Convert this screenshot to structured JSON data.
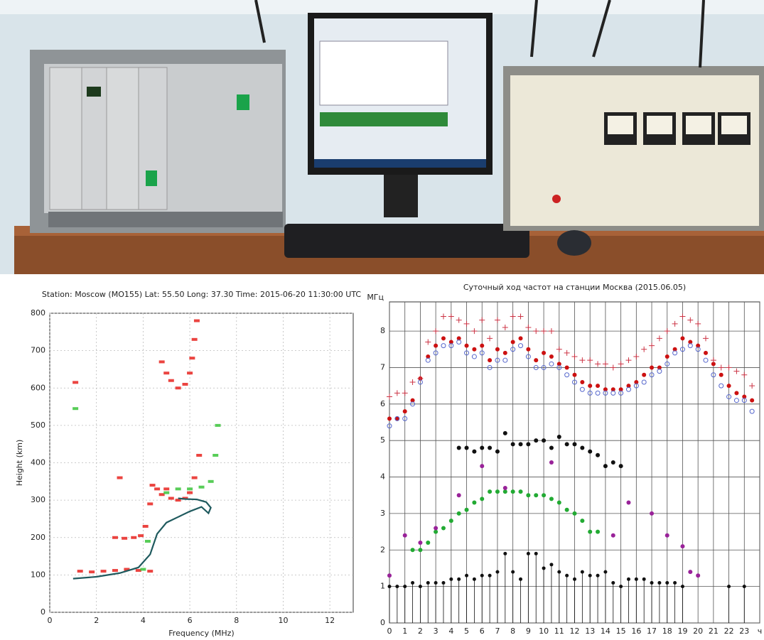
{
  "chart_data": [
    {
      "type": "scatter",
      "title": "Station: Moscow (MO155)  Lat: 55.50 Long: 37.30 Time: 2015-06-20 11:30:00 UTC",
      "x_label": "Frequency (MHz)",
      "y_label": "Height (km)",
      "xlim": [
        0,
        13
      ],
      "xticks": [
        0,
        2,
        4,
        6,
        8,
        10,
        12
      ],
      "ylim": [
        0,
        800
      ],
      "yticks": [
        0,
        100,
        200,
        300,
        400,
        500,
        600,
        700,
        800
      ],
      "grid": true,
      "series": [
        {
          "color": "#e8231f",
          "marker": "dot",
          "x": [
            1.3,
            1.8,
            2.3,
            2.8,
            3.3,
            3.8,
            4.3,
            2.8,
            3.2,
            3.6,
            3.9,
            4.1,
            4.3,
            4.4,
            4.6,
            4.8,
            5.0,
            5.2,
            5.5,
            5.8,
            6.0,
            6.2,
            6.4,
            4.8,
            5.0,
            5.2,
            5.5,
            5.8,
            6.0,
            6.1,
            6.2,
            6.3,
            1.1,
            3.0
          ],
          "values": [
            110,
            108,
            110,
            112,
            115,
            112,
            110,
            200,
            198,
            200,
            205,
            230,
            290,
            340,
            330,
            315,
            330,
            305,
            300,
            305,
            320,
            360,
            420,
            670,
            640,
            620,
            600,
            610,
            640,
            680,
            730,
            780,
            615,
            360
          ]
        },
        {
          "color": "#3bc43b",
          "marker": "dot",
          "x": [
            1.1,
            4.0,
            4.2,
            5.0,
            5.5,
            6.0,
            6.5,
            6.9,
            7.1,
            7.2
          ],
          "values": [
            545,
            115,
            190,
            320,
            330,
            330,
            335,
            350,
            420,
            500
          ]
        },
        {
          "color": "#1f5a5e",
          "marker": "line",
          "x": [
            1.0,
            2.0,
            3.0,
            3.8,
            4.3,
            4.6,
            5.0,
            5.5,
            6.0,
            6.5,
            6.8,
            6.9,
            6.7,
            6.3,
            5.8,
            5.5
          ],
          "values": [
            90,
            95,
            105,
            120,
            155,
            210,
            240,
            255,
            270,
            282,
            265,
            280,
            295,
            302,
            303,
            305
          ]
        }
      ]
    },
    {
      "type": "scatter",
      "title": "Суточный ход частот на станции Москва (2015.06.05)",
      "y_label": "МГц",
      "xlim": [
        0,
        24
      ],
      "xticks": [
        0,
        1,
        2,
        3,
        4,
        5,
        6,
        7,
        8,
        9,
        10,
        11,
        12,
        13,
        14,
        15,
        16,
        17,
        18,
        19,
        20,
        21,
        22,
        23,
        {
          "value": 24,
          "label": "ч"
        }
      ],
      "ylim": [
        0,
        8.8
      ],
      "yticks": [
        0,
        1,
        2,
        3,
        4,
        5,
        6,
        7,
        8
      ],
      "grid": true,
      "series": [
        {
          "color": "#cc1111",
          "marker": "circle-filled",
          "x": [
            0,
            0.5,
            1,
            1.5,
            2,
            2.5,
            3,
            3.5,
            4,
            4.5,
            5,
            5.5,
            6,
            6.5,
            7,
            7.5,
            8,
            8.5,
            9,
            9.5,
            10,
            10.5,
            11,
            11.5,
            12,
            12.5,
            13,
            13.5,
            14,
            14.5,
            15,
            15.5,
            16,
            16.5,
            17,
            17.5,
            18,
            18.5,
            19,
            19.5,
            20,
            20.5,
            21,
            21.5,
            22,
            22.5,
            23,
            23.5
          ],
          "values": [
            5.6,
            5.6,
            5.8,
            6.1,
            6.7,
            7.3,
            7.6,
            7.8,
            7.7,
            7.8,
            7.6,
            7.5,
            7.6,
            7.2,
            7.5,
            7.4,
            7.7,
            7.8,
            7.5,
            7.2,
            7.4,
            7.3,
            7.1,
            7.0,
            6.8,
            6.6,
            6.5,
            6.5,
            6.4,
            6.4,
            6.4,
            6.5,
            6.6,
            6.8,
            7.0,
            7.0,
            7.3,
            7.5,
            7.8,
            7.7,
            7.6,
            7.4,
            7.1,
            6.8,
            6.5,
            6.3,
            6.2,
            6.1
          ]
        },
        {
          "color": "#cc3344",
          "marker": "plus",
          "x": [
            0,
            0.5,
            1,
            1.5,
            2,
            2.5,
            3,
            3.5,
            4,
            4.5,
            5,
            5.5,
            6,
            6.5,
            7,
            7.5,
            8,
            8.5,
            9,
            9.5,
            10,
            10.5,
            11,
            11.5,
            12,
            12.5,
            13,
            13.5,
            14,
            14.5,
            15,
            15.5,
            16,
            16.5,
            17,
            17.5,
            18,
            18.5,
            19,
            19.5,
            20,
            20.5,
            21,
            21.5,
            22,
            22.5,
            23,
            23.5
          ],
          "values": [
            6.2,
            6.3,
            6.3,
            6.6,
            6.7,
            7.7,
            8.0,
            8.4,
            8.4,
            8.3,
            8.2,
            8.0,
            8.3,
            7.8,
            8.3,
            8.1,
            8.4,
            8.4,
            8.1,
            8.0,
            8.0,
            8.0,
            7.5,
            7.4,
            7.3,
            7.2,
            7.2,
            7.1,
            7.1,
            7.0,
            7.1,
            7.2,
            7.3,
            7.5,
            7.6,
            7.8,
            8.0,
            8.2,
            8.4,
            8.3,
            8.2,
            7.8,
            7.2,
            7.0,
            7.0,
            6.9,
            6.8,
            6.5
          ]
        },
        {
          "color": "#5566cc",
          "marker": "circle-open",
          "x": [
            0,
            0.5,
            1,
            1.5,
            2,
            2.5,
            3,
            3.5,
            4,
            4.5,
            5,
            5.5,
            6,
            6.5,
            7,
            7.5,
            8,
            8.5,
            9,
            9.5,
            10,
            10.5,
            11,
            11.5,
            12,
            12.5,
            13,
            13.5,
            14,
            14.5,
            15,
            15.5,
            16,
            16.5,
            17,
            17.5,
            18,
            18.5,
            19,
            19.5,
            20,
            20.5,
            21,
            21.5,
            22,
            22.5,
            23,
            23.5
          ],
          "values": [
            5.4,
            5.6,
            5.6,
            6.0,
            6.6,
            7.2,
            7.4,
            7.6,
            7.6,
            7.7,
            7.4,
            7.3,
            7.4,
            7.0,
            7.2,
            7.2,
            7.5,
            7.6,
            7.3,
            7.0,
            7.0,
            7.1,
            7.0,
            6.8,
            6.6,
            6.4,
            6.3,
            6.3,
            6.3,
            6.3,
            6.3,
            6.4,
            6.5,
            6.6,
            6.8,
            6.9,
            7.1,
            7.4,
            7.5,
            7.6,
            7.5,
            7.2,
            6.8,
            6.5,
            6.2,
            6.1,
            6.1,
            5.8
          ]
        },
        {
          "color": "#111111",
          "marker": "circle-filled",
          "x": [
            4.5,
            5,
            5.5,
            6,
            6.5,
            7,
            7.5,
            8,
            8.5,
            9,
            9.5,
            10,
            10.5,
            11,
            11.5,
            12,
            12.5,
            13,
            13.5,
            14,
            14.5,
            15
          ],
          "values": [
            4.8,
            4.8,
            4.7,
            4.8,
            4.8,
            4.7,
            5.2,
            4.9,
            4.9,
            4.9,
            5.0,
            5.0,
            4.8,
            5.1,
            4.9,
            4.9,
            4.8,
            4.7,
            4.6,
            4.3,
            4.4,
            4.3
          ]
        },
        {
          "color": "#22aa33",
          "marker": "circle-filled",
          "x": [
            1.5,
            2,
            2.5,
            3,
            3.5,
            4,
            4.5,
            5,
            5.5,
            6,
            6.5,
            7,
            7.5,
            8,
            8.5,
            9,
            9.5,
            10,
            10.5,
            11,
            11.5,
            12,
            12.5,
            13,
            13.5
          ],
          "values": [
            2.0,
            2.0,
            2.2,
            2.5,
            2.6,
            2.8,
            3.0,
            3.1,
            3.3,
            3.4,
            3.6,
            3.6,
            3.6,
            3.6,
            3.6,
            3.5,
            3.5,
            3.5,
            3.4,
            3.3,
            3.1,
            3.0,
            2.8,
            2.5,
            2.5
          ]
        },
        {
          "color": "#992299",
          "marker": "circle-filled",
          "x": [
            0,
            1,
            2,
            3,
            4.5,
            6,
            7.5,
            10.5,
            14.5,
            15.5,
            17,
            18,
            19,
            19.5,
            20
          ],
          "values": [
            1.3,
            2.4,
            2.2,
            2.6,
            3.5,
            4.3,
            3.7,
            4.4,
            2.4,
            3.3,
            3.0,
            2.4,
            2.1,
            1.4,
            1.3
          ]
        },
        {
          "color": "#111111",
          "marker": "stem",
          "x": [
            0,
            0.5,
            1,
            1.5,
            2,
            2.5,
            3,
            3.5,
            4,
            4.5,
            5,
            5.5,
            6,
            6.5,
            7,
            7.5,
            8,
            8.5,
            9,
            9.5,
            10,
            10.5,
            11,
            11.5,
            12,
            12.5,
            13,
            13.5,
            14,
            14.5,
            15,
            15.5,
            16,
            16.5,
            17,
            17.5,
            18,
            18.5,
            19,
            22,
            23
          ],
          "values": [
            1.0,
            1.0,
            1.0,
            1.1,
            1.0,
            1.1,
            1.1,
            1.1,
            1.2,
            1.2,
            1.3,
            1.2,
            1.3,
            1.3,
            1.4,
            1.9,
            1.4,
            1.2,
            1.9,
            1.9,
            1.5,
            1.6,
            1.4,
            1.3,
            1.2,
            1.4,
            1.3,
            1.3,
            1.4,
            1.1,
            1.0,
            1.2,
            1.2,
            1.2,
            1.1,
            1.1,
            1.1,
            1.1,
            1.0,
            1.0,
            1.0
          ]
        }
      ]
    }
  ]
}
